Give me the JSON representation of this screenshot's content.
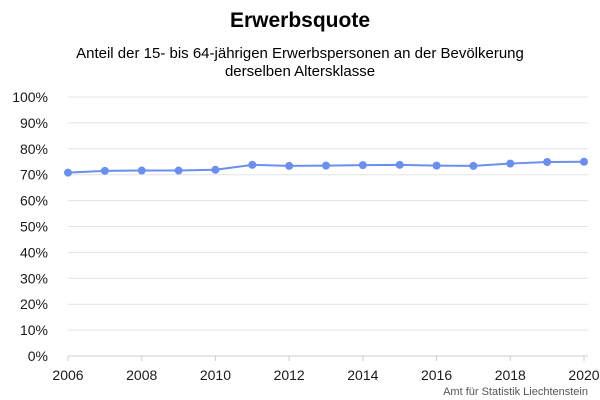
{
  "chart_data": {
    "type": "line",
    "title": "Erwerbsquote",
    "subtitle_lines": [
      "Anteil der 15- bis 64-jährigen Erwerbspersonen an der Bevölkerung",
      "derselben Altersklasse"
    ],
    "x": [
      2006,
      2007,
      2008,
      2009,
      2010,
      2011,
      2012,
      2013,
      2014,
      2015,
      2016,
      2017,
      2018,
      2019,
      2020
    ],
    "series": [
      {
        "values": [
          70.8,
          71.5,
          71.6,
          71.6,
          71.9,
          73.8,
          73.4,
          73.5,
          73.7,
          73.8,
          73.5,
          73.4,
          74.3,
          74.9,
          75.0
        ]
      }
    ],
    "x_ticks": [
      "2006",
      "2008",
      "2010",
      "2012",
      "2014",
      "2016",
      "2018",
      "2020"
    ],
    "y_ticks": [
      "0%",
      "10%",
      "20%",
      "30%",
      "40%",
      "50%",
      "60%",
      "70%",
      "80%",
      "90%",
      "100%"
    ],
    "xlim": [
      2006,
      2020
    ],
    "ylim": [
      0,
      100
    ],
    "grid": "horizontal",
    "line_color": "#6a8ff0",
    "source": "Amt für Statistik Liechtenstein"
  }
}
